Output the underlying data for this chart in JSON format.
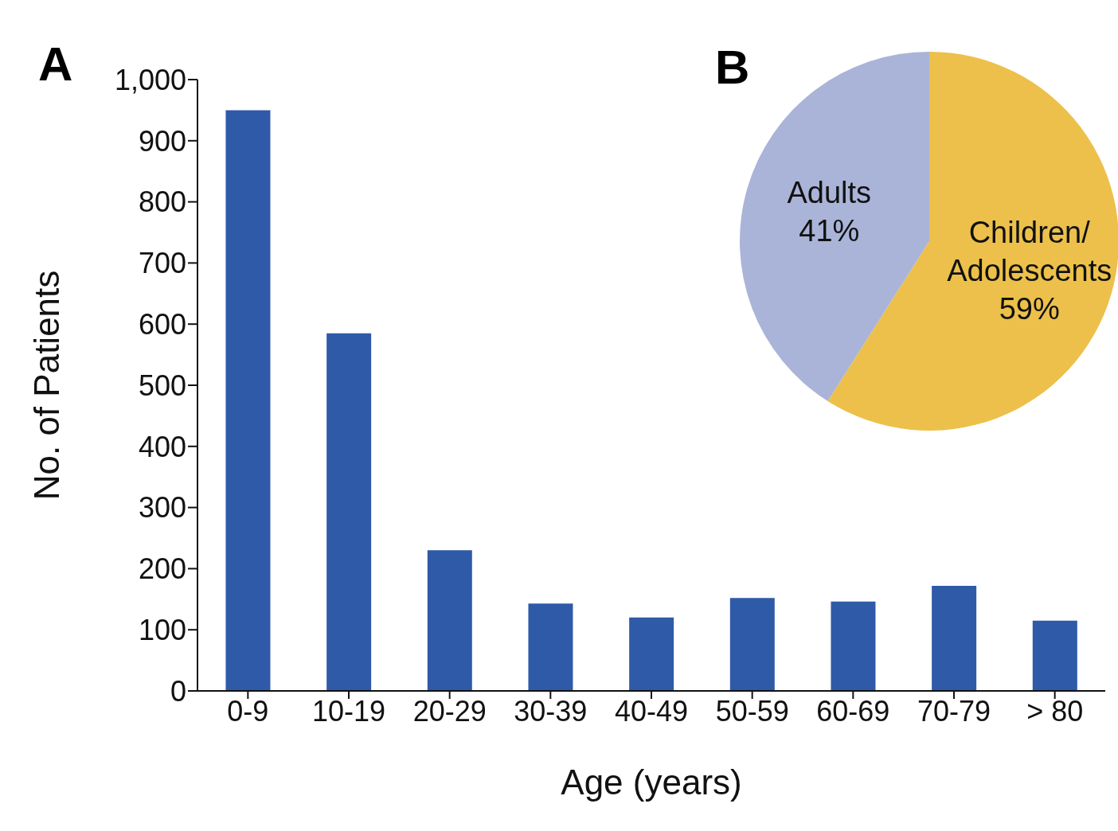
{
  "chart_data": [
    {
      "type": "bar",
      "title": "A",
      "xlabel": "Age (years)",
      "ylabel": "No. of Patients",
      "categories": [
        "0-9",
        "10-19",
        "20-29",
        "30-39",
        "40-49",
        "50-59",
        "60-69",
        "70-79",
        "> 80"
      ],
      "values": [
        950,
        585,
        230,
        143,
        120,
        152,
        146,
        172,
        115
      ],
      "color": "#2f5aa8",
      "ylim": [
        0,
        1000
      ],
      "yticks": [
        0,
        100,
        200,
        300,
        400,
        500,
        600,
        700,
        800,
        900,
        {
          "value": 1000,
          "label": "1,000"
        }
      ],
      "grid": false,
      "legend": false
    },
    {
      "type": "pie",
      "title": "B",
      "categories": [
        "Children/ Adolescents",
        "Adults"
      ],
      "values": [
        59,
        41
      ],
      "colors": [
        "#ecc04a",
        "#aab4d8"
      ],
      "value_labels": [
        "59%",
        "41%"
      ],
      "legend": false
    }
  ]
}
